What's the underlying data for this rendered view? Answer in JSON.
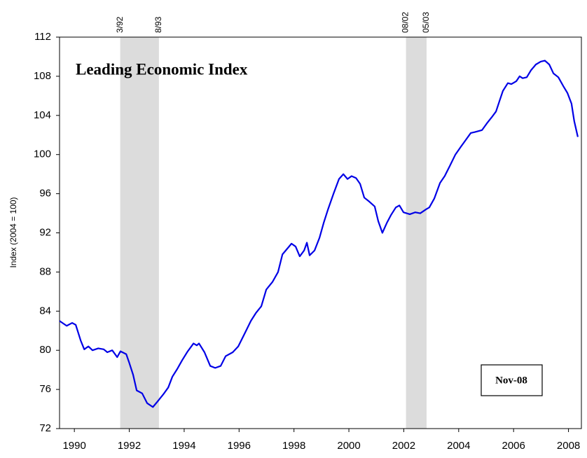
{
  "chart_data": {
    "type": "line",
    "title": "Leading Economic Index",
    "y_label": "Index (2004 = 100)",
    "annotation": "Nov-08",
    "xlim": [
      1989.96,
      2008.97
    ],
    "ylim": [
      72,
      112
    ],
    "yticks": [
      72,
      76,
      80,
      84,
      88,
      92,
      96,
      100,
      104,
      108,
      112
    ],
    "xticks": [
      {
        "value": 1990.5,
        "label": "1990"
      },
      {
        "value": 1992.5,
        "label": "1992"
      },
      {
        "value": 1994.5,
        "label": "1994"
      },
      {
        "value": 1996.5,
        "label": "1996"
      },
      {
        "value": 1998.5,
        "label": "1998"
      },
      {
        "value": 2000.5,
        "label": "2000"
      },
      {
        "value": 2002.5,
        "label": "2002"
      },
      {
        "value": 2004.5,
        "label": "2004"
      },
      {
        "value": 2006.5,
        "label": "2006"
      },
      {
        "value": 2008.5,
        "label": "2008"
      }
    ],
    "shaded_periods": [
      {
        "start": 1992.17,
        "end": 1993.58,
        "start_label": "3/92",
        "end_label": "8/93"
      },
      {
        "start": 2002.58,
        "end": 2003.33,
        "start_label": "08/02",
        "end_label": "05/03"
      }
    ],
    "shade_color": "#dcdcdc",
    "series": [
      {
        "name": "Leading Economic Index",
        "color": "#0000e6",
        "x": [
          1989.96,
          1990.22,
          1990.42,
          1990.55,
          1990.73,
          1990.86,
          1991.01,
          1991.16,
          1991.37,
          1991.57,
          1991.7,
          1991.88,
          1992.06,
          1992.18,
          1992.39,
          1992.49,
          1992.64,
          1992.77,
          1992.97,
          1993.15,
          1993.36,
          1993.54,
          1993.74,
          1993.92,
          1994.07,
          1994.25,
          1994.43,
          1994.63,
          1994.84,
          1994.96,
          1995.04,
          1995.24,
          1995.45,
          1995.63,
          1995.83,
          1996.01,
          1996.27,
          1996.47,
          1996.72,
          1996.93,
          1997.11,
          1997.31,
          1997.49,
          1997.72,
          1997.92,
          1998.08,
          1998.26,
          1998.41,
          1998.56,
          1998.71,
          1998.87,
          1998.97,
          1999.07,
          1999.25,
          1999.43,
          1999.58,
          1999.74,
          1999.94,
          2000.14,
          2000.3,
          2000.45,
          2000.6,
          2000.76,
          2000.91,
          2001.06,
          2001.24,
          2001.44,
          2001.57,
          2001.72,
          2001.88,
          2002.03,
          2002.21,
          2002.34,
          2002.49,
          2002.72,
          2002.92,
          2003.1,
          2003.31,
          2003.43,
          2003.61,
          2003.82,
          2003.99,
          2004.17,
          2004.38,
          2004.58,
          2004.76,
          2004.94,
          2005.09,
          2005.35,
          2005.53,
          2005.7,
          2005.86,
          2005.99,
          2006.11,
          2006.29,
          2006.42,
          2006.6,
          2006.72,
          2006.83,
          2006.98,
          2007.13,
          2007.31,
          2007.49,
          2007.64,
          2007.8,
          2007.95,
          2008.13,
          2008.31,
          2008.46,
          2008.61,
          2008.71,
          2008.84
        ],
        "values": [
          83.0,
          82.5,
          82.8,
          82.6,
          81.0,
          80.1,
          80.4,
          80.0,
          80.2,
          80.1,
          79.8,
          80.0,
          79.3,
          79.9,
          79.6,
          78.8,
          77.5,
          75.9,
          75.6,
          74.6,
          74.2,
          74.8,
          75.5,
          76.2,
          77.3,
          78.1,
          79.0,
          79.9,
          80.7,
          80.5,
          80.7,
          79.8,
          78.4,
          78.2,
          78.4,
          79.4,
          79.8,
          80.4,
          81.8,
          83.0,
          83.8,
          84.5,
          86.2,
          87.0,
          88.0,
          89.8,
          90.4,
          90.9,
          90.6,
          89.6,
          90.2,
          91.0,
          89.7,
          90.2,
          91.5,
          93.0,
          94.4,
          96.0,
          97.5,
          98.0,
          97.5,
          97.8,
          97.6,
          97.0,
          95.6,
          95.2,
          94.7,
          93.2,
          92.0,
          93.0,
          93.8,
          94.6,
          94.8,
          94.1,
          93.9,
          94.1,
          94.0,
          94.4,
          94.6,
          95.5,
          97.1,
          97.8,
          98.8,
          100.0,
          100.8,
          101.5,
          102.2,
          102.3,
          102.5,
          103.2,
          103.8,
          104.4,
          105.5,
          106.5,
          107.3,
          107.2,
          107.5,
          108.0,
          107.8,
          107.9,
          108.6,
          109.2,
          109.5,
          109.6,
          109.2,
          108.3,
          107.9,
          107.0,
          106.3,
          105.2,
          103.4,
          101.8
        ]
      }
    ]
  }
}
